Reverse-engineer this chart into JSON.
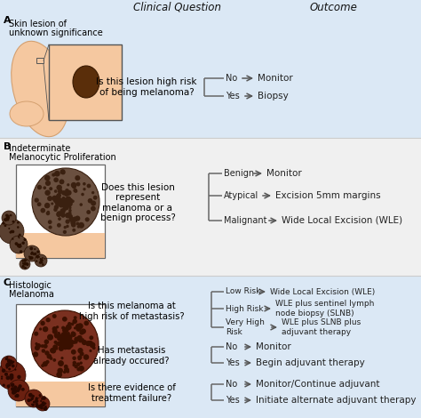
{
  "header_clinical": "Clinical Question",
  "header_outcome": "Outcome",
  "bg_A": "#dbe8f5",
  "bg_B": "#f0f0f0",
  "bg_C": "#dbe8f5",
  "sep_color": "#cccccc",
  "arrow_color": "#555555",
  "line_color": "#666666",
  "text_color": "#222222",
  "section_A": {
    "label": "A",
    "image_label_line1": "Skin lesion of",
    "image_label_line2": "unknown significance",
    "question": "Is this lesion high risk\nof being melanoma?",
    "branches": [
      {
        "label": "No",
        "outcome": "Monitor"
      },
      {
        "label": "Yes",
        "outcome": "Biopsy"
      }
    ]
  },
  "section_B": {
    "label": "B",
    "image_label_line1": "Indeterminate",
    "image_label_line2": "Melanocytic Proliferation",
    "question": "Does this lesion\nrepresent\nmelanoma or a\nbenign process?",
    "branches": [
      {
        "label": "Benign",
        "outcome": "Monitor"
      },
      {
        "label": "Atypical",
        "outcome": "Excision 5mm margins"
      },
      {
        "label": "Malignant",
        "outcome": "Wide Local Excision (WLE)"
      }
    ]
  },
  "section_C": {
    "label": "C",
    "image_label_line1": "Histologic",
    "image_label_line2": "Melanoma",
    "questions": [
      {
        "question": "Is this melanoma at\nhigh risk of metastasis?",
        "branches": [
          {
            "label": "Low Risk",
            "outcome": "Wide Local Excision (WLE)"
          },
          {
            "label": "High Risk",
            "outcome": "WLE plus sentinel lymph\nnode biopsy (SLNB)"
          },
          {
            "label": "Very High\nRisk",
            "outcome": "WLE plus SLNB plus\nadjuvant therapy"
          }
        ]
      },
      {
        "question": "Has metastasis\nalready occured?",
        "branches": [
          {
            "label": "No",
            "outcome": "Monitor"
          },
          {
            "label": "Yes",
            "outcome": "Begin adjuvant therapy"
          }
        ]
      },
      {
        "question": "Is there evidence of\ntreatment failure?",
        "branches": [
          {
            "label": "No",
            "outcome": "Monitor/Continue adjuvant"
          },
          {
            "label": "Yes",
            "outcome": "Initiate alternate adjuvant therapy"
          }
        ]
      }
    ]
  }
}
